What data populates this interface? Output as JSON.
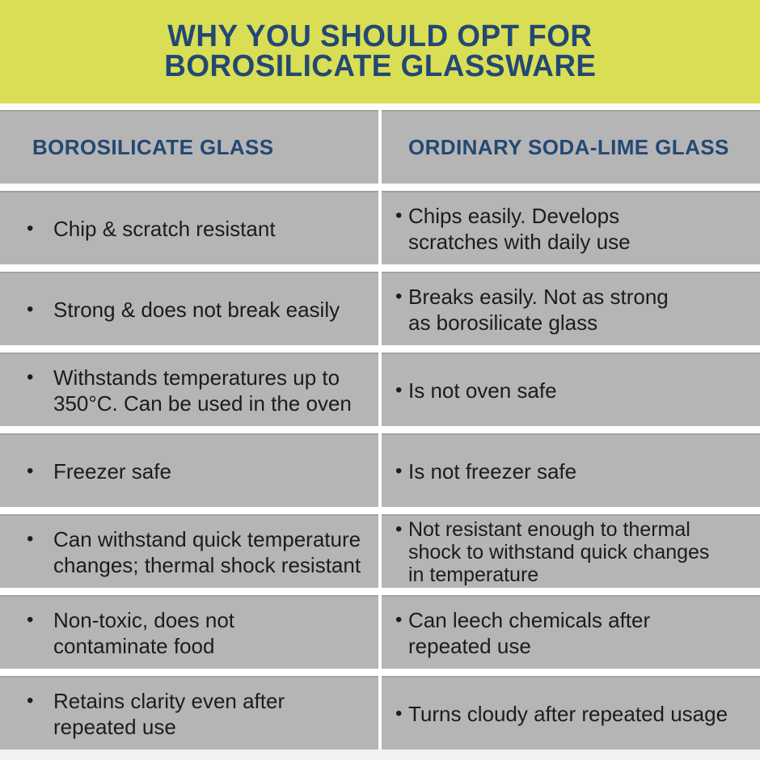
{
  "header": {
    "title_line1": "WHY YOU SHOULD OPT FOR",
    "title_line2": "BOROSILICATE GLASSWARE"
  },
  "table": {
    "columns": [
      {
        "label": "BOROSILICATE GLASS"
      },
      {
        "label": "ORDINARY SODA-LIME GLASS"
      }
    ],
    "rows": [
      {
        "left": "Chip & scratch resistant",
        "right": "Chips easily. Develops\nscratches with daily use"
      },
      {
        "left": "Strong & does not break easily",
        "right": "Breaks easily. Not as strong\nas borosilicate glass"
      },
      {
        "left": "Withstands temperatures up to\n350°C. Can be used in the oven",
        "right": "Is not oven safe"
      },
      {
        "left": "Freezer safe",
        "right": "Is not freezer safe"
      },
      {
        "left": "Can withstand quick temperature\nchanges; thermal shock resistant",
        "right": "Not resistant enough to thermal\nshock to withstand quick changes\nin temperature"
      },
      {
        "left": "Non-toxic, does not\ncontaminate food",
        "right": "Can leech chemicals after\nrepeated use"
      },
      {
        "left": "Retains clarity even after\nrepeated use",
        "right": "Turns cloudy after repeated usage"
      }
    ]
  },
  "colors": {
    "lime": "#d9de55",
    "navy": "#234874",
    "row_gray": "#b5b5b5",
    "gap_white": "#ffffff",
    "body_text": "#1c1c1c"
  }
}
